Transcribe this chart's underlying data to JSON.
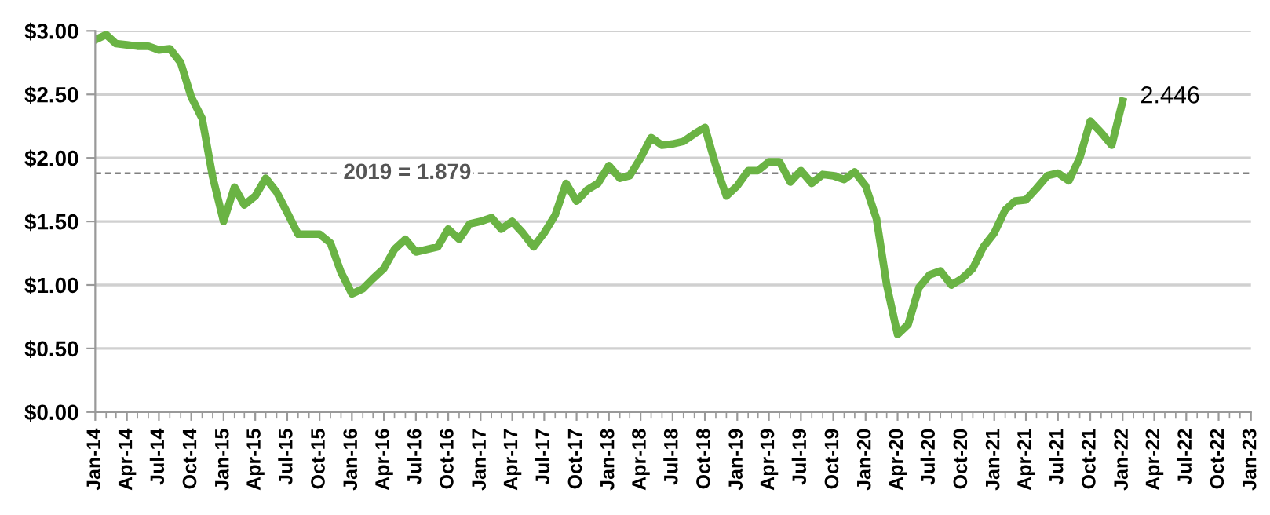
{
  "chart_data": {
    "type": "line",
    "x": [
      "2014-01",
      "2014-02",
      "2014-03",
      "2014-04",
      "2014-05",
      "2014-06",
      "2014-07",
      "2014-08",
      "2014-09",
      "2014-10",
      "2014-11",
      "2014-12",
      "2015-01",
      "2015-02",
      "2015-03",
      "2015-04",
      "2015-05",
      "2015-06",
      "2015-07",
      "2015-08",
      "2015-09",
      "2015-10",
      "2015-11",
      "2015-12",
      "2016-01",
      "2016-02",
      "2016-03",
      "2016-04",
      "2016-05",
      "2016-06",
      "2016-07",
      "2016-08",
      "2016-09",
      "2016-10",
      "2016-11",
      "2016-12",
      "2017-01",
      "2017-02",
      "2017-03",
      "2017-04",
      "2017-05",
      "2017-06",
      "2017-07",
      "2017-08",
      "2017-09",
      "2017-10",
      "2017-11",
      "2017-12",
      "2018-01",
      "2018-02",
      "2018-03",
      "2018-04",
      "2018-05",
      "2018-06",
      "2018-07",
      "2018-08",
      "2018-09",
      "2018-10",
      "2018-11",
      "2018-12",
      "2019-01",
      "2019-02",
      "2019-03",
      "2019-04",
      "2019-05",
      "2019-06",
      "2019-07",
      "2019-08",
      "2019-09",
      "2019-10",
      "2019-11",
      "2019-12",
      "2020-01",
      "2020-02",
      "2020-03",
      "2020-04",
      "2020-05",
      "2020-06",
      "2020-07",
      "2020-08",
      "2020-09",
      "2020-10",
      "2020-11",
      "2020-12",
      "2021-01",
      "2021-02",
      "2021-03",
      "2021-04",
      "2021-05",
      "2021-06",
      "2021-07",
      "2021-08",
      "2021-09",
      "2021-10",
      "2021-11",
      "2021-12",
      "2022-01"
    ],
    "series": [
      {
        "color": "#6ab344",
        "values": [
          2.93,
          2.97,
          2.9,
          2.89,
          2.88,
          2.88,
          2.85,
          2.86,
          2.75,
          2.48,
          2.31,
          1.85,
          1.5,
          1.77,
          1.63,
          1.7,
          1.84,
          1.73,
          1.57,
          1.4,
          1.4,
          1.4,
          1.33,
          1.1,
          0.93,
          0.97,
          1.05,
          1.13,
          1.28,
          1.36,
          1.26,
          1.28,
          1.3,
          1.44,
          1.36,
          1.48,
          1.5,
          1.53,
          1.44,
          1.5,
          1.41,
          1.3,
          1.41,
          1.55,
          1.8,
          1.66,
          1.75,
          1.8,
          1.94,
          1.84,
          1.86,
          2.0,
          2.16,
          2.1,
          2.11,
          2.13,
          2.19,
          2.24,
          1.94,
          1.7,
          1.78,
          1.9,
          1.9,
          1.97,
          1.97,
          1.81,
          1.9,
          1.8,
          1.87,
          1.86,
          1.83,
          1.89,
          1.78,
          1.52,
          1.0,
          0.61,
          0.69,
          0.98,
          1.08,
          1.11,
          1.0,
          1.05,
          1.13,
          1.3,
          1.41,
          1.59,
          1.66,
          1.67,
          1.76,
          1.86,
          1.88,
          1.82,
          2.0,
          2.29,
          2.2,
          2.1,
          2.446
        ]
      }
    ],
    "xlim": [
      "2014-01",
      "2023-01"
    ],
    "xticks": [
      {
        "value": "2014-01",
        "label": "Jan-14"
      },
      {
        "value": "2014-04",
        "label": "Apr-14"
      },
      {
        "value": "2014-07",
        "label": "Jul-14"
      },
      {
        "value": "2014-10",
        "label": "Oct-14"
      },
      {
        "value": "2015-01",
        "label": "Jan-15"
      },
      {
        "value": "2015-04",
        "label": "Apr-15"
      },
      {
        "value": "2015-07",
        "label": "Jul-15"
      },
      {
        "value": "2015-10",
        "label": "Oct-15"
      },
      {
        "value": "2016-01",
        "label": "Jan-16"
      },
      {
        "value": "2016-04",
        "label": "Apr-16"
      },
      {
        "value": "2016-07",
        "label": "Jul-16"
      },
      {
        "value": "2016-10",
        "label": "Oct-16"
      },
      {
        "value": "2017-01",
        "label": "Jan-17"
      },
      {
        "value": "2017-04",
        "label": "Apr-17"
      },
      {
        "value": "2017-07",
        "label": "Jul-17"
      },
      {
        "value": "2017-10",
        "label": "Oct-17"
      },
      {
        "value": "2018-01",
        "label": "Jan-18"
      },
      {
        "value": "2018-04",
        "label": "Apr-18"
      },
      {
        "value": "2018-07",
        "label": "Jul-18"
      },
      {
        "value": "2018-10",
        "label": "Oct-18"
      },
      {
        "value": "2019-01",
        "label": "Jan-19"
      },
      {
        "value": "2019-04",
        "label": "Apr-19"
      },
      {
        "value": "2019-07",
        "label": "Jul-19"
      },
      {
        "value": "2019-10",
        "label": "Oct-19"
      },
      {
        "value": "2020-01",
        "label": "Jan-20"
      },
      {
        "value": "2020-04",
        "label": "Apr-20"
      },
      {
        "value": "2020-07",
        "label": "Jul-20"
      },
      {
        "value": "2020-10",
        "label": "Oct-20"
      },
      {
        "value": "2021-01",
        "label": "Jan-21"
      },
      {
        "value": "2021-04",
        "label": "Apr-21"
      },
      {
        "value": "2021-07",
        "label": "Jul-21"
      },
      {
        "value": "2021-10",
        "label": "Oct-21"
      },
      {
        "value": "2022-01",
        "label": "Jan-22"
      },
      {
        "value": "2022-04",
        "label": "Apr-22"
      },
      {
        "value": "2022-07",
        "label": "Jul-22"
      },
      {
        "value": "2022-10",
        "label": "Oct-22"
      },
      {
        "value": "2023-01",
        "label": "Jan-23"
      }
    ],
    "ylim": [
      0,
      3
    ],
    "yticks": [
      {
        "value": 0,
        "label": "$0.00"
      },
      {
        "value": 0.5,
        "label": "$0.50"
      },
      {
        "value": 1,
        "label": "$1.00"
      },
      {
        "value": 1.5,
        "label": "$1.50"
      },
      {
        "value": 2,
        "label": "$2.00"
      },
      {
        "value": 2.5,
        "label": "$2.50"
      },
      {
        "value": 3,
        "label": "$3.00"
      }
    ],
    "grid": "y",
    "marker": "none",
    "line_style": "solid",
    "legend": false,
    "ref_lines": [
      {
        "axis": "y",
        "value": 1.879,
        "label": "2019 = 1.879",
        "color": "#808080",
        "line_style": "dashed"
      }
    ],
    "annotations": [
      {
        "text": "2.446",
        "x": "2022-01",
        "y": 2.446
      }
    ]
  }
}
